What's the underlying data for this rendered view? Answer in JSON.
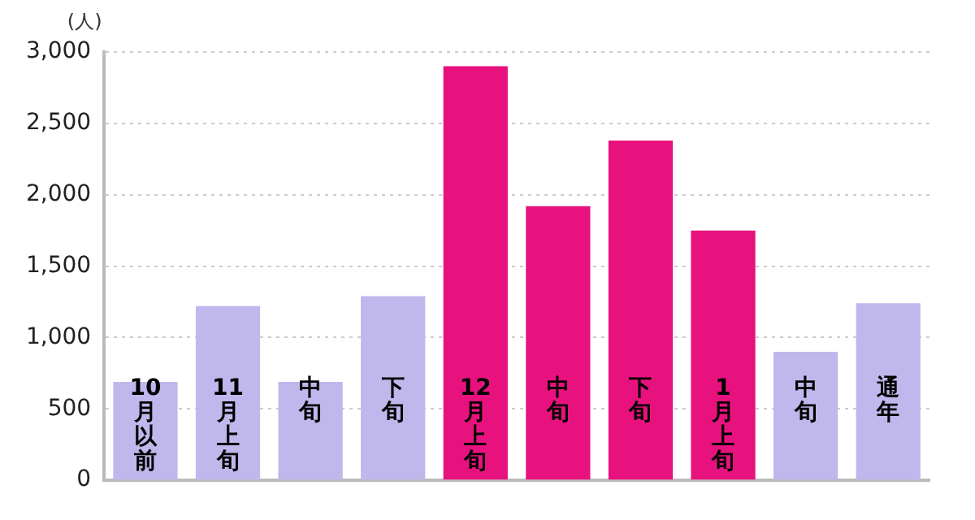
{
  "chart_data": {
    "type": "bar",
    "ylabel": "(人)",
    "categories": [
      "10月以前",
      "11月上旬",
      "中旬",
      "下旬",
      "12月上旬",
      "中旬",
      "下旬",
      "1月上旬",
      "中旬",
      "通年"
    ],
    "values": [
      690,
      1220,
      690,
      1290,
      2900,
      1920,
      2380,
      1750,
      900,
      1240
    ],
    "colors": [
      "#c0b8ec",
      "#c0b8ec",
      "#c0b8ec",
      "#c0b8ec",
      "#e8127f",
      "#e8127f",
      "#e8127f",
      "#e8127f",
      "#c0b8ec",
      "#c0b8ec"
    ],
    "ylim": [
      0,
      3000
    ],
    "yticks": [
      0,
      500,
      {
        "value": 1000,
        "label": "1,000"
      },
      {
        "value": 1500,
        "label": "1,500"
      },
      {
        "value": 2000,
        "label": "2,000"
      },
      {
        "value": 2500,
        "label": "2,500"
      },
      {
        "value": 3000,
        "label": "3,000"
      }
    ],
    "grid": "y",
    "legend": false
  }
}
